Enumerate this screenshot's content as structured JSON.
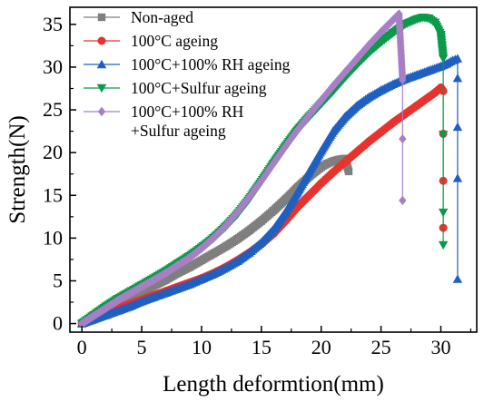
{
  "chart_data": {
    "type": "line",
    "xlabel": "Length deformtion(mm)",
    "ylabel": "Strength(N)",
    "xlim": [
      -1,
      33
    ],
    "ylim": [
      -1,
      37
    ],
    "xticks": [
      "0",
      "5",
      "10",
      "15",
      "20",
      "25",
      "30"
    ],
    "yticks": [
      "0",
      "5",
      "10",
      "15",
      "20",
      "25",
      "30",
      "35"
    ],
    "grid": false,
    "legend_position": "top-left",
    "series": [
      {
        "name": "Non-aged",
        "color": "#7f7f7f",
        "marker": "square",
        "x": [
          0,
          1,
          2,
          3,
          4,
          5,
          6,
          7,
          8,
          9,
          10,
          11,
          12,
          13,
          14,
          15,
          16,
          17,
          18,
          19,
          20,
          20.5,
          21,
          21.5,
          22,
          22.3
        ],
        "y": [
          0,
          0.8,
          1.6,
          2.3,
          3.0,
          3.7,
          4.4,
          5.1,
          5.9,
          6.6,
          7.4,
          8.2,
          9.0,
          9.9,
          10.9,
          12.0,
          13.2,
          14.5,
          15.9,
          17.2,
          18.3,
          18.7,
          19.0,
          19.2,
          19.3,
          17.8
        ]
      },
      {
        "name": "100°C ageing",
        "color": "#e8322d",
        "marker": "circle",
        "x": [
          0,
          1,
          2,
          3,
          4,
          5,
          6,
          7,
          8,
          9,
          10,
          11,
          12,
          13,
          14,
          15,
          16,
          17,
          18,
          19,
          20,
          21,
          22,
          23,
          24,
          25,
          26,
          27,
          28,
          29,
          29.5,
          30,
          30.2,
          30.2,
          30.2,
          30.2
        ],
        "y": [
          0,
          0.6,
          1.2,
          1.8,
          2.3,
          2.8,
          3.3,
          3.8,
          4.3,
          4.8,
          5.3,
          5.9,
          6.6,
          7.4,
          8.3,
          9.3,
          10.5,
          12.0,
          13.6,
          15.0,
          16.4,
          17.7,
          18.9,
          20.1,
          21.3,
          22.4,
          23.5,
          24.5,
          25.5,
          26.5,
          27.0,
          27.6,
          27.2,
          22.2,
          16.7,
          11.2
        ]
      },
      {
        "name": "100°C+100% RH ageing",
        "color": "#1f5fc1",
        "marker": "triangle-up",
        "x": [
          0,
          1,
          2,
          3,
          4,
          5,
          6,
          7,
          8,
          9,
          10,
          11,
          12,
          13,
          14,
          15,
          16,
          17,
          18,
          19,
          20,
          21,
          22,
          23,
          24,
          25,
          26,
          27,
          28,
          29,
          30,
          30.5,
          31,
          31.4,
          31.4,
          31.4,
          31.4,
          31.4
        ],
        "y": [
          0,
          0.5,
          1.0,
          1.5,
          2.0,
          2.6,
          3.1,
          3.6,
          4.1,
          4.6,
          5.2,
          5.8,
          6.5,
          7.3,
          8.3,
          9.5,
          11.0,
          13.0,
          15.3,
          17.8,
          20.2,
          22.5,
          24.2,
          25.5,
          26.5,
          27.3,
          28.0,
          28.6,
          29.1,
          29.6,
          30.1,
          30.4,
          30.8,
          31.0,
          28.7,
          23.0,
          17.0,
          5.2
        ]
      },
      {
        "name": "100°C+Sulfur ageing",
        "color": "#0a9a4a",
        "marker": "triangle-down",
        "x": [
          0,
          1,
          2,
          3,
          4,
          5,
          6,
          7,
          8,
          9,
          10,
          11,
          12,
          13,
          14,
          15,
          16,
          17,
          18,
          19,
          20,
          21,
          22,
          23,
          24,
          25,
          26,
          27,
          28,
          28.5,
          29,
          29.5,
          30,
          30.2,
          30.2,
          30.2,
          30.2
        ],
        "y": [
          0,
          1.0,
          2.0,
          2.9,
          3.7,
          4.5,
          5.3,
          6.1,
          7.0,
          7.9,
          8.9,
          10.0,
          11.3,
          12.8,
          14.6,
          16.6,
          18.7,
          20.7,
          22.6,
          24.2,
          25.7,
          27.2,
          28.8,
          30.3,
          31.7,
          32.9,
          34.0,
          35.0,
          35.6,
          35.8,
          35.7,
          35.2,
          33.8,
          31.0,
          22.1,
          13.0,
          9.2
        ]
      },
      {
        "name": "100°C+100% RH +Sulfur ageing",
        "color": "#a67fc4",
        "marker": "diamond",
        "x": [
          0,
          1,
          2,
          3,
          4,
          5,
          6,
          7,
          8,
          9,
          10,
          11,
          12,
          13,
          14,
          15,
          16,
          17,
          18,
          19,
          20,
          21,
          22,
          23,
          24,
          25,
          26,
          26.5,
          26.8,
          26.8,
          26.8
        ],
        "y": [
          0,
          0.9,
          1.8,
          2.7,
          3.5,
          4.3,
          5.1,
          5.9,
          6.8,
          7.7,
          8.8,
          10.0,
          11.4,
          13.0,
          14.8,
          16.7,
          18.7,
          20.7,
          22.6,
          24.4,
          26.1,
          27.8,
          29.4,
          31.0,
          32.6,
          34.1,
          35.5,
          36.2,
          28.5,
          21.6,
          14.4
        ]
      }
    ]
  },
  "legend": {
    "entries": [
      {
        "lines": [
          "Non-aged"
        ]
      },
      {
        "lines": [
          "100°C ageing"
        ]
      },
      {
        "lines": [
          "100°C+100% RH ageing"
        ]
      },
      {
        "lines": [
          "100°C+Sulfur ageing"
        ]
      },
      {
        "lines": [
          "100°C+100% RH",
          "+Sulfur ageing"
        ]
      }
    ]
  }
}
